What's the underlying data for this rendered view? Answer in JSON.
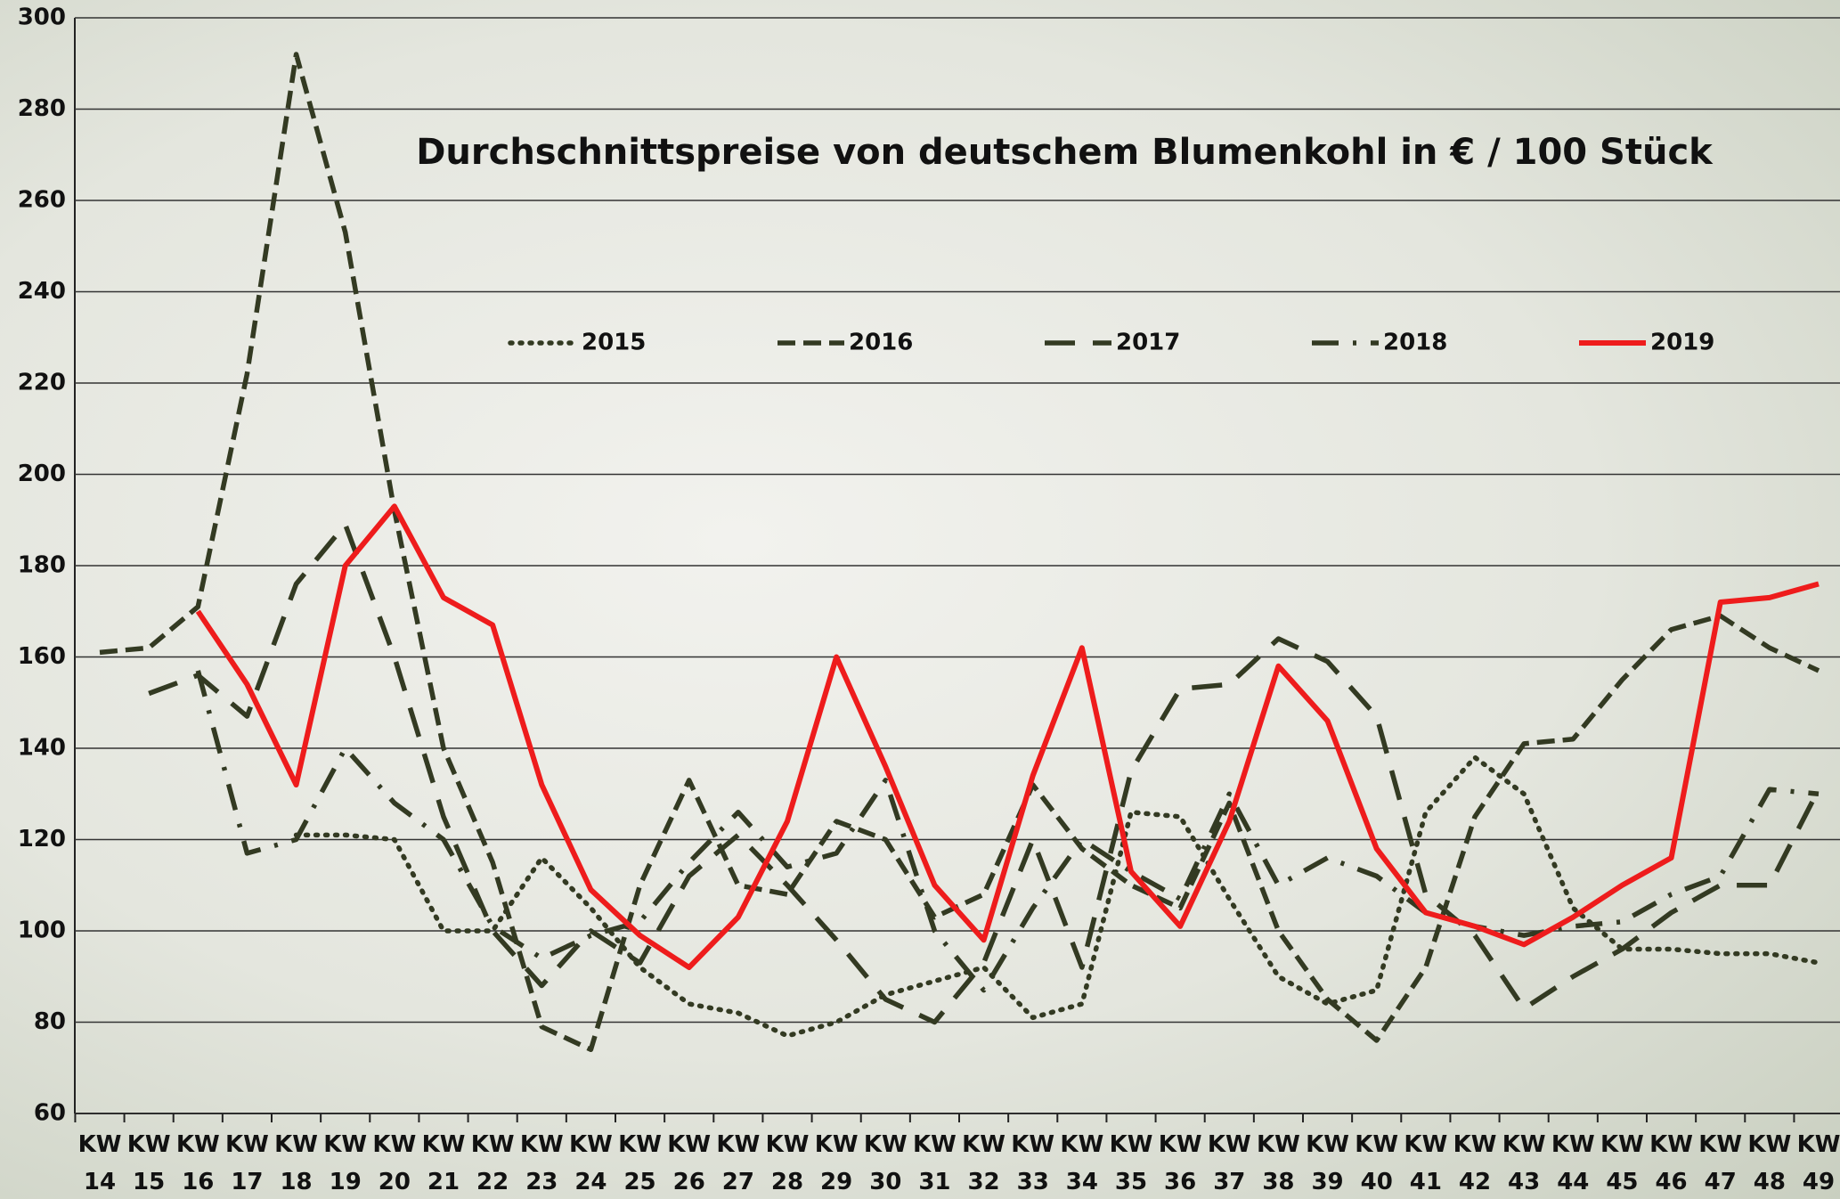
{
  "chart_data": {
    "type": "line",
    "title": "Durchschnittspreise von deutschem Blumenkohl in € / 100 Stück",
    "categories": [
      "KW 14",
      "KW 15",
      "KW 16",
      "KW 17",
      "KW 18",
      "KW 19",
      "KW 20",
      "KW 21",
      "KW 22",
      "KW 23",
      "KW 24",
      "KW 25",
      "KW 26",
      "KW 27",
      "KW 28",
      "KW 29",
      "KW 30",
      "KW 31",
      "KW 32",
      "KW 33",
      "KW 34",
      "KW 35",
      "KW 36",
      "KW 37",
      "KW 38",
      "KW 39",
      "KW 40",
      "KW 41",
      "KW 42",
      "KW 43",
      "KW 44",
      "KW 45",
      "KW 46",
      "KW 47",
      "KW 48",
      "KW 49"
    ],
    "series": [
      {
        "name": "2015",
        "color": "#333a22",
        "style": "dotted",
        "values": [
          null,
          null,
          null,
          null,
          121,
          121,
          120,
          100,
          100,
          116,
          105,
          92,
          84,
          82,
          77,
          80,
          86,
          89,
          92,
          81,
          84,
          126,
          125,
          107,
          90,
          84,
          87,
          126,
          138,
          130,
          105,
          96,
          96,
          95,
          95,
          93
        ]
      },
      {
        "name": "2016",
        "color": "#333a22",
        "style": "dashed",
        "values": [
          161,
          162,
          171,
          222,
          292,
          253,
          192,
          140,
          115,
          79,
          74,
          110,
          133,
          110,
          108,
          124,
          120,
          103,
          108,
          132,
          118,
          110,
          105,
          128,
          100,
          85,
          76,
          92,
          125,
          141,
          142,
          155,
          166,
          169,
          162,
          157
        ]
      },
      {
        "name": "2017",
        "color": "#333a22",
        "style": "longdash",
        "values": [
          null,
          152,
          156,
          147,
          176,
          189,
          160,
          125,
          100,
          88,
          100,
          93,
          112,
          121,
          110,
          98,
          85,
          80,
          93,
          120,
          92,
          135,
          153,
          154,
          164,
          159,
          147,
          108,
          99,
          83,
          90,
          96,
          104,
          110,
          110,
          131
        ]
      },
      {
        "name": "2018",
        "color": "#333a22",
        "style": "dashdot",
        "values": [
          null,
          null,
          157,
          117,
          120,
          140,
          128,
          120,
          101,
          94,
          99,
          102,
          115,
          126,
          114,
          117,
          133,
          100,
          87,
          105,
          120,
          113,
          107,
          130,
          110,
          116,
          112,
          104,
          101,
          99,
          101,
          102,
          108,
          112,
          131,
          130
        ]
      },
      {
        "name": "2019",
        "color": "#ee1c1c",
        "style": "solid",
        "values": [
          null,
          null,
          170,
          154,
          132,
          180,
          193,
          173,
          167,
          132,
          109,
          99,
          92,
          103,
          124,
          160,
          136,
          110,
          98,
          134,
          162,
          113,
          101,
          124,
          158,
          146,
          118,
          104,
          101,
          97,
          103,
          110,
          116,
          172,
          173,
          176
        ]
      }
    ],
    "ylim": [
      60,
      300
    ],
    "yticks": [
      60,
      80,
      100,
      120,
      140,
      160,
      180,
      200,
      220,
      240,
      260,
      280,
      300
    ],
    "grid": true
  }
}
